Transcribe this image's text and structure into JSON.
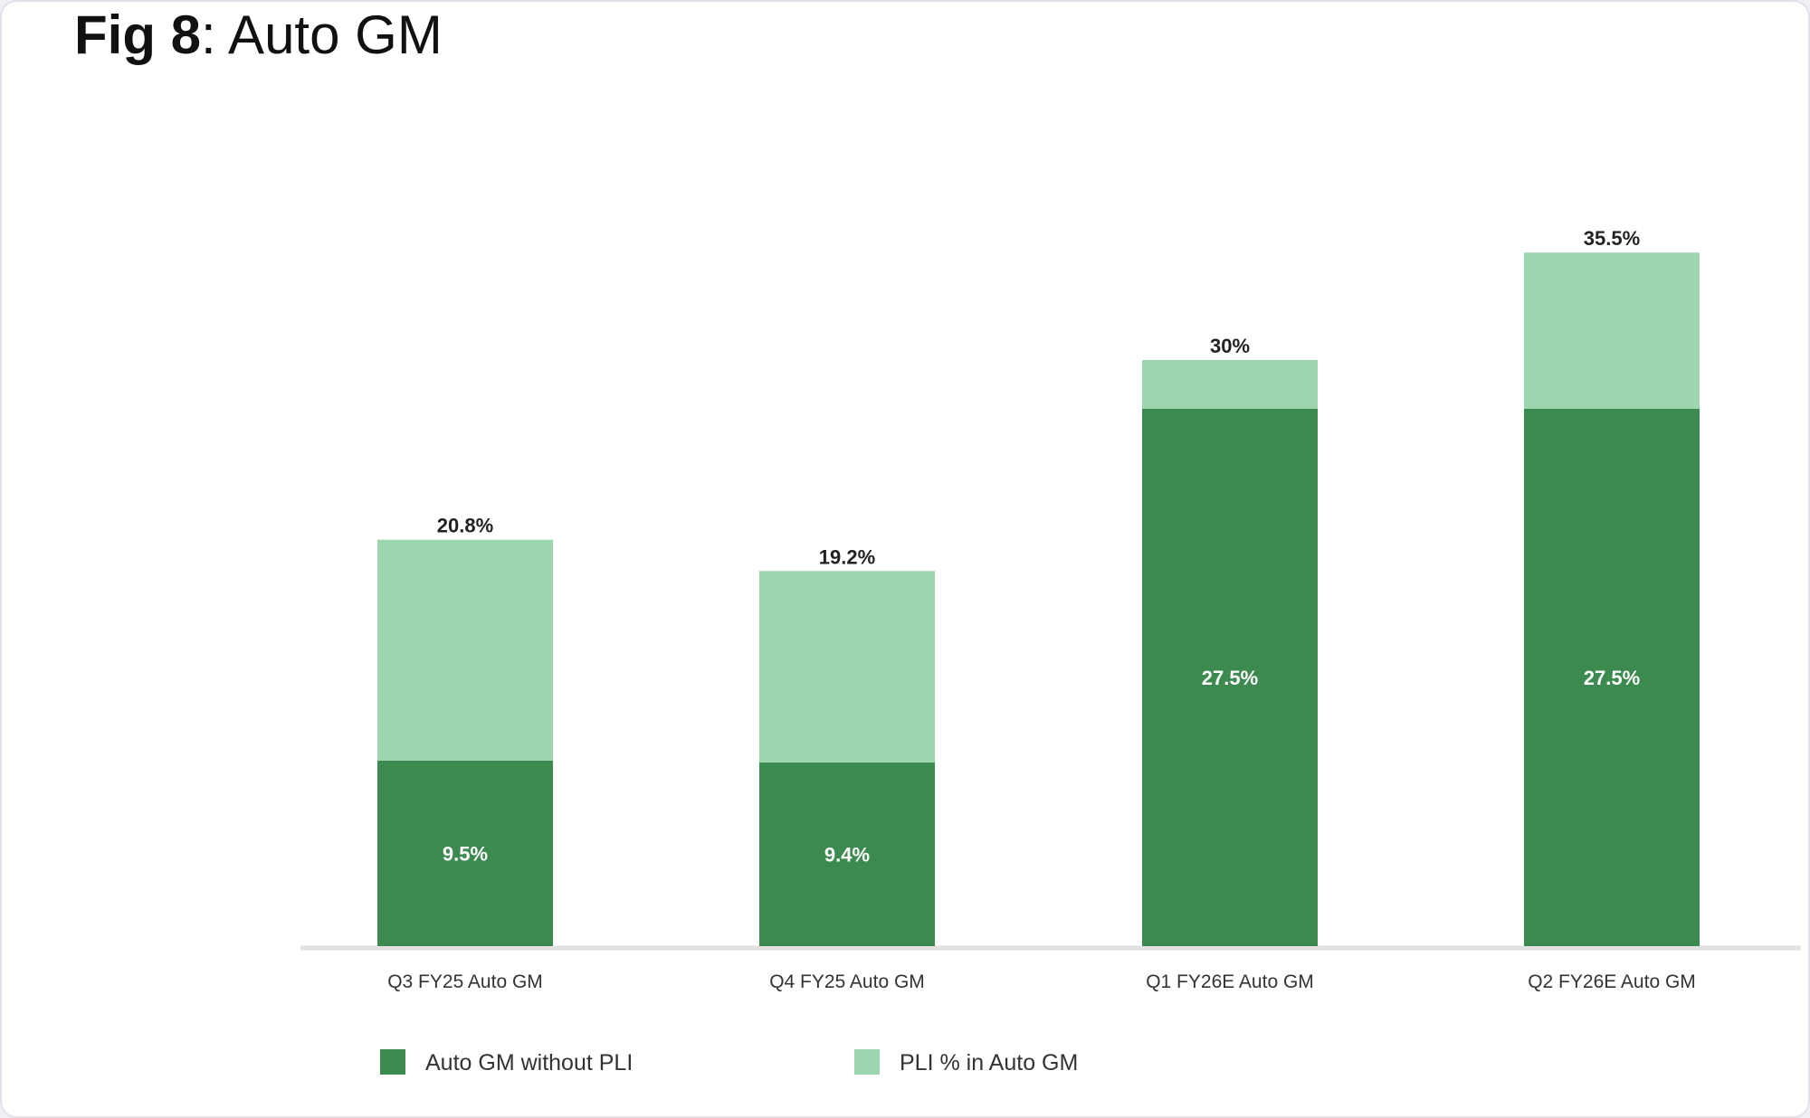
{
  "title_prefix": "Fig 8",
  "title_text": ": Auto GM",
  "colors": {
    "dark": "#3c8a4f",
    "light": "#9dd5ae",
    "baseline": "#e2e2e2"
  },
  "chart_data": {
    "type": "bar",
    "stacked": true,
    "title": "Fig 8: Auto GM",
    "categories": [
      "Q3 FY25 Auto GM",
      "Q4 FY25 Auto GM",
      "Q1 FY26E Auto GM",
      "Q2 FY26E Auto GM"
    ],
    "series": [
      {
        "name": "Auto GM without PLI",
        "values": [
          9.5,
          9.4,
          27.5,
          27.5
        ],
        "labels": [
          "9.5%",
          "9.4%",
          "27.5%",
          "27.5%"
        ]
      },
      {
        "name": "PLI % in Auto GM",
        "values": [
          11.3,
          9.8,
          2.5,
          8.0
        ]
      }
    ],
    "totals": [
      20.8,
      19.2,
      30,
      35.5
    ],
    "total_labels": [
      "20.8%",
      "19.2%",
      "30%",
      "35.5%"
    ],
    "ylim": [
      0,
      40
    ],
    "grid": false,
    "legend_position": "bottom-left"
  }
}
